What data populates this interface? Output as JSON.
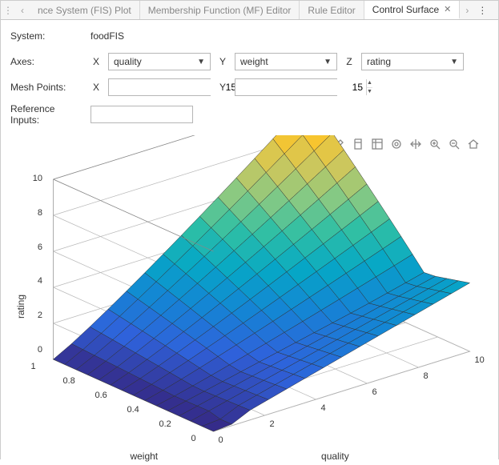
{
  "tabs": {
    "items": [
      {
        "label": "nce System (FIS) Plot",
        "active": false
      },
      {
        "label": "Membership Function (MF) Editor",
        "active": false
      },
      {
        "label": "Rule Editor",
        "active": false
      },
      {
        "label": "Control Surface",
        "active": true
      }
    ]
  },
  "system": {
    "label": "System:",
    "value": "foodFIS"
  },
  "axes": {
    "label": "Axes:",
    "x": {
      "label": "X",
      "value": "quality"
    },
    "y": {
      "label": "Y",
      "value": "weight"
    },
    "z": {
      "label": "Z",
      "value": "rating"
    }
  },
  "mesh": {
    "label": "Mesh Points:",
    "x": {
      "label": "X",
      "value": "15"
    },
    "y": {
      "label": "Y",
      "value": "15"
    }
  },
  "ref": {
    "label": "Reference Inputs:",
    "value": ""
  },
  "plot": {
    "type": "surface3d",
    "zlabel": "rating",
    "xlabel": "quality",
    "ylabel": "weight",
    "zlim": [
      0,
      10
    ],
    "ztick_step": 2,
    "xlim": [
      0,
      10
    ],
    "xticks": [
      0,
      2,
      4,
      6,
      8,
      10
    ],
    "ylim": [
      0,
      1
    ],
    "yticks": [
      0,
      0.2,
      0.4,
      0.6,
      0.8,
      1
    ],
    "mesh_n": 15,
    "background_color": "#ffffff",
    "grid_color": "#b8b8b8",
    "edge_color": "#303030",
    "colormap_name": "parula-like",
    "colormap": [
      "#352a87",
      "#2f62db",
      "#1485d4",
      "#06a7c6",
      "#2ebfa5",
      "#87c983",
      "#d1c75a",
      "#f9c52c",
      "#f9e824"
    ],
    "surface_desc": "rating rises from ~0 at (quality=0, weight=0) toward ~10 near (quality≈9, weight≈1); front edge plateau ~4 along high-quality/low-weight."
  },
  "toolbar_icons": [
    "brush",
    "export",
    "data-cursor",
    "rotate3d",
    "pan",
    "zoom-in",
    "zoom-out",
    "home"
  ]
}
